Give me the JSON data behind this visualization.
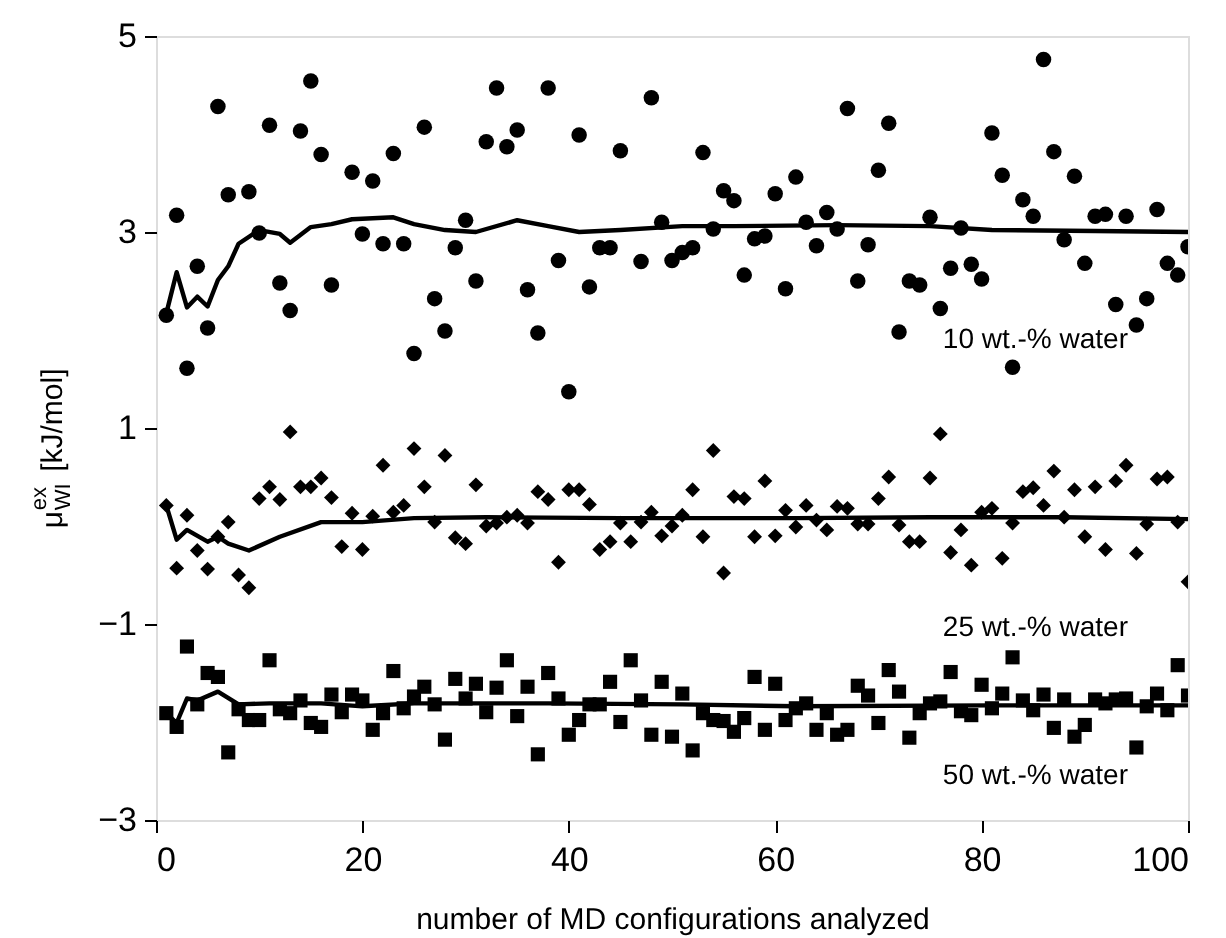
{
  "chart_data": {
    "type": "scatter",
    "xlabel": "number of MD configurations analyzed",
    "ylabel": "μ$^{ex}$$_{WI}$ [kJ/mol]",
    "xlim": [
      0,
      100
    ],
    "xticks": [
      0,
      20,
      40,
      60,
      80,
      100
    ],
    "ylim": [
      -3,
      5
    ],
    "yticks": [
      -3,
      -1,
      1,
      3,
      5
    ],
    "grid": false,
    "series": [
      {
        "name": "10 wt.-% water",
        "marker": "circle",
        "color": "#000000",
        "x": [
          1,
          2,
          3,
          4,
          5,
          6,
          7,
          9,
          10,
          11,
          12,
          13,
          14,
          15,
          16,
          17,
          19,
          20,
          21,
          22,
          23,
          24,
          25,
          26,
          27,
          28,
          29,
          30,
          31,
          32,
          33,
          34,
          35,
          36,
          37,
          38,
          39,
          40,
          41,
          42,
          43,
          44,
          45,
          47,
          48,
          49,
          50,
          51,
          52,
          53,
          54,
          55,
          56,
          57,
          58,
          59,
          60,
          61,
          62,
          63,
          64,
          65,
          66,
          67,
          68,
          69,
          70,
          71,
          72,
          73,
          74,
          75,
          76,
          77,
          78,
          79,
          80,
          81,
          82,
          83,
          84,
          85,
          86,
          87,
          88,
          89,
          90,
          91,
          92,
          93,
          94,
          95,
          96,
          97,
          98,
          99,
          100
        ],
        "values": [
          2.15,
          3.17,
          1.61,
          2.65,
          2.02,
          4.28,
          3.38,
          3.41,
          2.99,
          4.09,
          2.48,
          2.2,
          4.03,
          4.54,
          3.79,
          2.46,
          3.61,
          2.98,
          3.52,
          2.88,
          3.8,
          2.88,
          1.76,
          4.07,
          2.32,
          1.99,
          2.84,
          3.12,
          2.5,
          3.92,
          4.47,
          3.87,
          4.04,
          2.41,
          1.97,
          4.47,
          2.71,
          1.37,
          3.99,
          2.44,
          2.84,
          2.84,
          3.83,
          2.7,
          4.37,
          3.1,
          2.71,
          2.79,
          2.84,
          3.81,
          3.03,
          3.42,
          3.32,
          2.56,
          2.93,
          2.96,
          3.39,
          2.42,
          3.56,
          3.1,
          2.86,
          3.2,
          3.03,
          4.26,
          2.5,
          2.87,
          3.63,
          4.11,
          1.98,
          2.5,
          2.46,
          3.15,
          2.22,
          2.63,
          3.04,
          2.67,
          2.52,
          4.01,
          3.58,
          1.62,
          3.33,
          3.16,
          4.76,
          3.82,
          2.92,
          3.57,
          2.68,
          3.16,
          3.18,
          2.26,
          3.16,
          2.05,
          2.32,
          3.23,
          2.68,
          2.56,
          2.85
        ]
      },
      {
        "type": "line",
        "line_style": "solid",
        "color": "#000000",
        "x": [
          1,
          2,
          3,
          4,
          5,
          6,
          7,
          8,
          10,
          12,
          13,
          15,
          17,
          19,
          23,
          25,
          28,
          31,
          35,
          38,
          41,
          45,
          51,
          56,
          66,
          75,
          81,
          91,
          100
        ],
        "values": [
          2.17,
          2.59,
          2.23,
          2.34,
          2.24,
          2.51,
          2.65,
          2.88,
          3.02,
          2.98,
          2.89,
          3.05,
          3.08,
          3.13,
          3.15,
          3.08,
          3.02,
          3.0,
          3.12,
          3.06,
          3.0,
          3.02,
          3.06,
          3.06,
          3.07,
          3.06,
          3.02,
          3.01,
          3.0
        ]
      },
      {
        "name": "25 wt.-% water",
        "marker": "diamond",
        "color": "#000000",
        "x": [
          1,
          2,
          3,
          4,
          5,
          6,
          7,
          8,
          9,
          10,
          11,
          12,
          13,
          14,
          15,
          16,
          17,
          18,
          19,
          20,
          21,
          22,
          23,
          24,
          25,
          26,
          27,
          28,
          29,
          30,
          31,
          32,
          33,
          34,
          35,
          36,
          37,
          38,
          39,
          40,
          41,
          42,
          43,
          44,
          45,
          46,
          47,
          48,
          49,
          50,
          51,
          52,
          53,
          54,
          55,
          56,
          57,
          58,
          59,
          60,
          61,
          62,
          63,
          64,
          65,
          66,
          67,
          68,
          69,
          70,
          71,
          72,
          73,
          74,
          75,
          76,
          77,
          78,
          79,
          80,
          81,
          82,
          83,
          84,
          85,
          86,
          87,
          88,
          89,
          90,
          91,
          92,
          93,
          94,
          95,
          96,
          97,
          98,
          99,
          100
        ],
        "values": [
          0.21,
          -0.43,
          0.11,
          -0.25,
          -0.44,
          -0.11,
          0.04,
          -0.5,
          -0.63,
          0.28,
          0.4,
          0.27,
          0.96,
          0.4,
          0.4,
          0.49,
          0.29,
          -0.21,
          0.13,
          -0.24,
          0.1,
          0.62,
          0.14,
          0.21,
          0.79,
          0.4,
          0.04,
          0.72,
          -0.12,
          -0.18,
          0.42,
          0.0,
          0.03,
          0.09,
          0.11,
          0.03,
          0.35,
          0.27,
          -0.37,
          0.37,
          0.37,
          0.22,
          -0.24,
          -0.16,
          0.03,
          -0.16,
          0.04,
          0.14,
          -0.1,
          0.0,
          0.11,
          0.37,
          -0.11,
          0.77,
          -0.48,
          0.3,
          0.28,
          -0.11,
          0.46,
          -0.1,
          0.16,
          -0.01,
          0.21,
          0.06,
          -0.04,
          0.2,
          0.18,
          0.02,
          0.02,
          0.28,
          0.5,
          0.01,
          -0.16,
          -0.16,
          0.49,
          0.94,
          -0.27,
          -0.04,
          -0.4,
          0.14,
          0.18,
          -0.33,
          0.03,
          0.35,
          0.39,
          0.21,
          0.56,
          0.09,
          0.37,
          -0.11,
          0.4,
          -0.24,
          0.46,
          0.62,
          -0.28,
          0.02,
          0.48,
          0.5,
          0.04,
          -0.57
        ]
      },
      {
        "type": "line",
        "line_style": "solid",
        "color": "#000000",
        "x": [
          1,
          2,
          3,
          5,
          6,
          7,
          9,
          12,
          16,
          20,
          25,
          32,
          45,
          51,
          62,
          75,
          88,
          100
        ],
        "values": [
          0.21,
          -0.14,
          -0.04,
          -0.16,
          -0.11,
          -0.18,
          -0.25,
          -0.11,
          0.04,
          0.04,
          0.08,
          0.09,
          0.08,
          0.08,
          0.08,
          0.09,
          0.09,
          0.07
        ]
      },
      {
        "name": "50 wt.-% water",
        "marker": "square",
        "color": "#000000",
        "x": [
          1,
          2,
          3,
          4,
          5,
          6,
          7,
          8,
          9,
          10,
          11,
          12,
          13,
          14,
          15,
          16,
          17,
          18,
          19,
          20,
          21,
          22,
          23,
          24,
          25,
          26,
          27,
          28,
          29,
          30,
          31,
          32,
          33,
          34,
          35,
          36,
          37,
          38,
          39,
          40,
          41,
          42,
          43,
          44,
          45,
          46,
          47,
          48,
          49,
          50,
          51,
          52,
          53,
          54,
          55,
          56,
          57,
          58,
          59,
          60,
          61,
          62,
          63,
          64,
          65,
          66,
          67,
          68,
          69,
          70,
          71,
          72,
          73,
          74,
          75,
          76,
          77,
          78,
          79,
          80,
          81,
          82,
          83,
          84,
          85,
          86,
          87,
          88,
          89,
          90,
          91,
          92,
          93,
          94,
          95,
          96,
          97,
          98,
          99,
          100
        ],
        "values": [
          -1.91,
          -2.05,
          -1.23,
          -1.82,
          -1.5,
          -1.54,
          -2.31,
          -1.87,
          -1.98,
          -1.98,
          -1.37,
          -1.87,
          -1.91,
          -1.78,
          -2.01,
          -2.05,
          -1.72,
          -1.9,
          -1.72,
          -1.78,
          -2.08,
          -1.91,
          -1.48,
          -1.86,
          -1.74,
          -1.64,
          -1.82,
          -2.18,
          -1.56,
          -1.76,
          -1.61,
          -1.9,
          -1.65,
          -1.37,
          -1.94,
          -1.64,
          -2.33,
          -1.5,
          -1.76,
          -2.13,
          -1.98,
          -1.82,
          -1.82,
          -1.59,
          -2.0,
          -1.37,
          -1.78,
          -2.13,
          -1.59,
          -2.15,
          -1.71,
          -2.29,
          -1.91,
          -1.98,
          -1.99,
          -2.1,
          -1.96,
          -1.54,
          -2.08,
          -1.61,
          -1.98,
          -1.86,
          -1.81,
          -2.08,
          -1.91,
          -2.13,
          -2.08,
          -1.63,
          -1.73,
          -2.01,
          -1.47,
          -1.69,
          -2.16,
          -1.91,
          -1.81,
          -1.79,
          -1.49,
          -1.89,
          -1.93,
          -1.62,
          -1.86,
          -1.71,
          -1.34,
          -1.78,
          -1.88,
          -1.72,
          -2.06,
          -1.77,
          -2.15,
          -2.03,
          -1.77,
          -1.81,
          -1.77,
          -1.76,
          -2.26,
          -1.84,
          -1.71,
          -1.88,
          -1.42,
          -1.73
        ]
      },
      {
        "type": "line",
        "line_style": "solid",
        "color": "#000000",
        "x": [
          1,
          2,
          3,
          4,
          6,
          8,
          11,
          16,
          20,
          25,
          38,
          51,
          62,
          81,
          100
        ],
        "values": [
          -1.91,
          -2.01,
          -1.76,
          -1.78,
          -1.69,
          -1.82,
          -1.81,
          -1.81,
          -1.84,
          -1.81,
          -1.81,
          -1.82,
          -1.84,
          -1.83,
          -1.83
        ]
      }
    ]
  }
}
